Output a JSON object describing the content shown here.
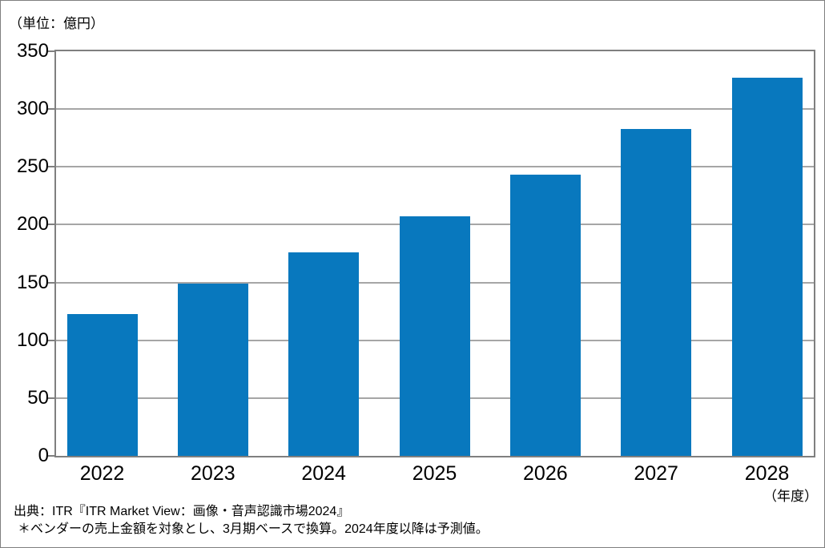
{
  "chart_data": {
    "type": "bar",
    "categories": [
      "2022",
      "2023",
      "2024",
      "2025",
      "2026",
      "2027",
      "2028"
    ],
    "values": [
      123,
      149,
      176,
      207,
      243,
      283,
      327
    ],
    "title": "",
    "unit_label": "（単位：億円）",
    "xlabel": "（年度）",
    "ylabel": "",
    "ylim": [
      0,
      350
    ],
    "ytick_step": 50,
    "grid": true,
    "legend": false,
    "bar_color": "#0878be",
    "gridline_color": "#a6a6a6",
    "border_color": "#7f7f7f",
    "source": "出典：ITR『ITR Market View：画像・音声認識市場2024』",
    "note": "＊ベンダーの売上金額を対象とし、3月期ベースで換算。2024年度以降は予測値。"
  }
}
